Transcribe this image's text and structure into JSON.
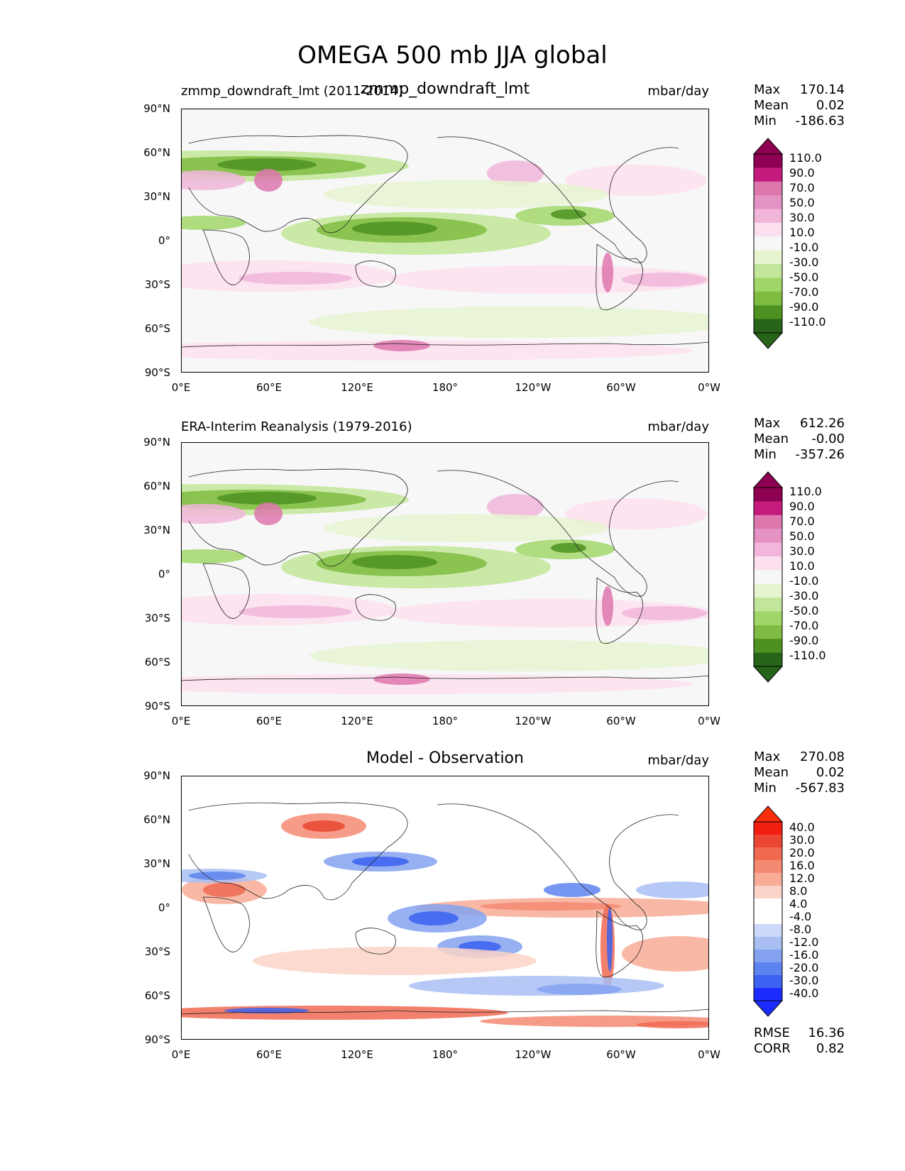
{
  "figure": {
    "title": "OMEGA 500 mb JJA global"
  },
  "axes": {
    "lat_labels": [
      "90°N",
      "60°N",
      "30°N",
      "0°",
      "30°S",
      "60°S",
      "90°S"
    ],
    "lon_labels": [
      "0°E",
      "60°E",
      "120°E",
      "180°",
      "120°W",
      "60°W",
      "0°W"
    ]
  },
  "panels": [
    {
      "id": "test",
      "left_title": "zmmp_downdraft_lmt (2011-2014)",
      "center_title": "zmmp_downdraft_lmt",
      "units": "mbar/day",
      "stats": {
        "max_label": "Max",
        "max": "170.14",
        "mean_label": "Mean",
        "mean": "0.02",
        "min_label": "Min",
        "min": "-186.63"
      },
      "colorbar": {
        "colors": [
          "#276419",
          "#4d9221",
          "#7fbc41",
          "#a1d76a",
          "#c2e699",
          "#e6f5d0",
          "#f7f7f7",
          "#fde0ef",
          "#f1b6da",
          "#e592c4",
          "#de77ae",
          "#c51b7d",
          "#8e0152"
        ],
        "under": "#276419",
        "over": "#8e0152",
        "labels": [
          "110.0",
          "90.0",
          "70.0",
          "50.0",
          "30.0",
          "10.0",
          "-10.0",
          "-30.0",
          "-50.0",
          "-70.0",
          "-90.0",
          "-110.0"
        ]
      }
    },
    {
      "id": "reference",
      "left_title": "ERA-Interim Reanalysis (1979-2016)",
      "center_title": "",
      "units": "mbar/day",
      "stats": {
        "max_label": "Max",
        "max": "612.26",
        "mean_label": "Mean",
        "mean": "-0.00",
        "min_label": "Min",
        "min": "-357.26"
      },
      "colorbar": {
        "colors": [
          "#276419",
          "#4d9221",
          "#7fbc41",
          "#a1d76a",
          "#c2e699",
          "#e6f5d0",
          "#f7f7f7",
          "#fde0ef",
          "#f1b6da",
          "#e592c4",
          "#de77ae",
          "#c51b7d",
          "#8e0152"
        ],
        "under": "#276419",
        "over": "#8e0152",
        "labels": [
          "110.0",
          "90.0",
          "70.0",
          "50.0",
          "30.0",
          "10.0",
          "-10.0",
          "-30.0",
          "-50.0",
          "-70.0",
          "-90.0",
          "-110.0"
        ]
      }
    },
    {
      "id": "diff",
      "left_title": "",
      "center_title": "Model - Observation",
      "units": "mbar/day",
      "stats": {
        "max_label": "Max",
        "max": "270.08",
        "mean_label": "Mean",
        "mean": "0.02",
        "min_label": "Min",
        "min": "-567.83"
      },
      "metrics": {
        "rmse_label": "RMSE",
        "rmse": "16.36",
        "corr_label": "CORR",
        "corr": "0.82"
      },
      "colorbar": {
        "colors": [
          "#1e2bff",
          "#3b62f0",
          "#5d84ee",
          "#84a2f0",
          "#a9bff4",
          "#cdd9fa",
          "#ffffff",
          "#ffffff",
          "#fbd3c8",
          "#f8ab97",
          "#f58a72",
          "#f06a52",
          "#ea4632",
          "#f01e10"
        ],
        "under": "#1e2bff",
        "over": "#ff2e0a",
        "labels": [
          "40.0",
          "30.0",
          "20.0",
          "16.0",
          "12.0",
          "8.0",
          "4.0",
          "-4.0",
          "-8.0",
          "-12.0",
          "-16.0",
          "-20.0",
          "-30.0",
          "-40.0"
        ]
      }
    }
  ]
}
